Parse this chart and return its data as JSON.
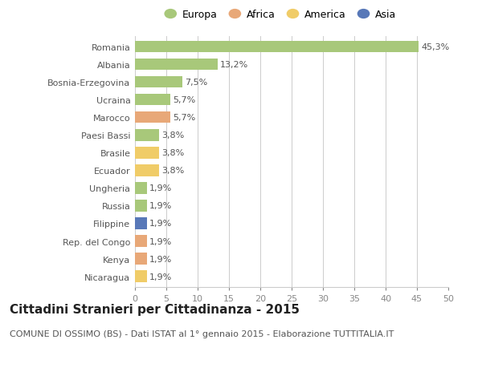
{
  "countries": [
    "Romania",
    "Albania",
    "Bosnia-Erzegovina",
    "Ucraina",
    "Marocco",
    "Paesi Bassi",
    "Brasile",
    "Ecuador",
    "Ungheria",
    "Russia",
    "Filippine",
    "Rep. del Congo",
    "Kenya",
    "Nicaragua"
  ],
  "values": [
    45.3,
    13.2,
    7.5,
    5.7,
    5.7,
    3.8,
    3.8,
    3.8,
    1.9,
    1.9,
    1.9,
    1.9,
    1.9,
    1.9
  ],
  "labels": [
    "45,3%",
    "13,2%",
    "7,5%",
    "5,7%",
    "5,7%",
    "3,8%",
    "3,8%",
    "3,8%",
    "1,9%",
    "1,9%",
    "1,9%",
    "1,9%",
    "1,9%",
    "1,9%"
  ],
  "continents": [
    "Europa",
    "Europa",
    "Europa",
    "Europa",
    "Africa",
    "Europa",
    "America",
    "America",
    "Europa",
    "Europa",
    "Asia",
    "Africa",
    "Africa",
    "America"
  ],
  "continent_colors": {
    "Europa": "#a8c87a",
    "Africa": "#e8a878",
    "America": "#f0cc68",
    "Asia": "#5878b8"
  },
  "legend_order": [
    "Europa",
    "Africa",
    "America",
    "Asia"
  ],
  "xlim": [
    0,
    50
  ],
  "xticks": [
    0,
    5,
    10,
    15,
    20,
    25,
    30,
    35,
    40,
    45,
    50
  ],
  "title": "Cittadini Stranieri per Cittadinanza - 2015",
  "subtitle": "COMUNE DI OSSIMO (BS) - Dati ISTAT al 1° gennaio 2015 - Elaborazione TUTTITALIA.IT",
  "bg_color": "#ffffff",
  "grid_color": "#cccccc",
  "bar_height": 0.65,
  "label_fontsize": 8,
  "ytick_fontsize": 8,
  "xtick_fontsize": 8,
  "title_fontsize": 11,
  "subtitle_fontsize": 8
}
